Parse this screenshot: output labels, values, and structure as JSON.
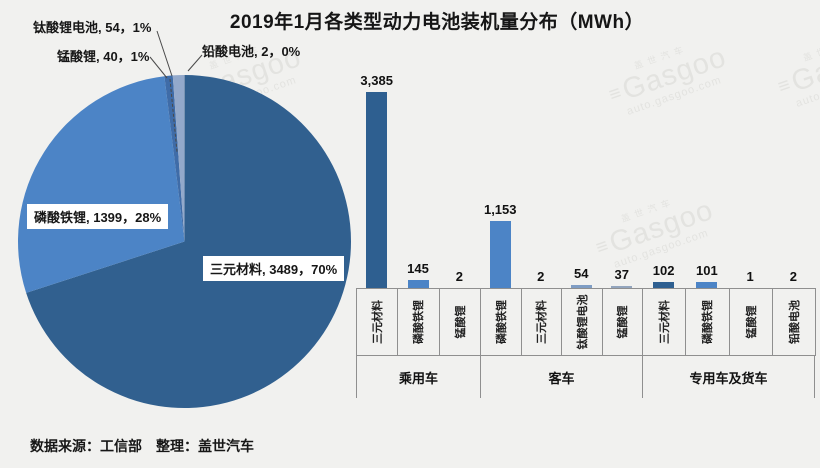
{
  "title": "2019年1月各类型动力电池装机量分布（MWh）",
  "source_line": "数据来源：工信部　整理：盖世汽车",
  "watermark": {
    "mark": "≡",
    "cn": "盖世汽车",
    "brand": "Gasgoo",
    "site": "auto.gasgoo.com"
  },
  "colors": {
    "background": "#f1f1ef",
    "type_colors": {
      "三元材料": "#2e5f90",
      "磷酸铁锂": "#4c84c6",
      "钛酸锂电池": "#7f9dc4",
      "锰酸锂": "#93a5bd",
      "铅酸电池": "#b9c3d6"
    }
  },
  "chart_data": [
    {
      "type": "pie",
      "title": "2019年1月各类型动力电池装机量分布（MWh）",
      "unit": "MWh",
      "legend_position": "none",
      "slices": [
        {
          "name": "三元材料",
          "value": 3489,
          "pct": "70%",
          "label": "三元材料, 3489，70%",
          "color": "#31608f"
        },
        {
          "name": "磷酸铁锂",
          "value": 1399,
          "pct": "28%",
          "label": "磷酸铁锂, 1399，28%",
          "color": "#4c84c6"
        },
        {
          "name": "锰酸锂",
          "value": 40,
          "pct": "1%",
          "label": "锰酸锂, 40，1%",
          "color": "#3f6ca8"
        },
        {
          "name": "钛酸锂电池",
          "value": 54,
          "pct": "1%",
          "label": "钛酸锂电池, 54，1%",
          "color": "#93a9cb"
        },
        {
          "name": "铅酸电池",
          "value": 2,
          "pct": "0%",
          "label": "铅酸电池, 2，0%",
          "color": "#b9c3d6"
        }
      ]
    },
    {
      "type": "bar",
      "ylim": [
        0,
        3500
      ],
      "grid": false,
      "groups": [
        {
          "label": "乘用车",
          "bars": [
            {
              "category": "三元材料",
              "value": 3385,
              "display": "3,385"
            },
            {
              "category": "磷酸铁锂",
              "value": 145,
              "display": "145"
            },
            {
              "category": "锰酸锂",
              "value": 2,
              "display": "2"
            }
          ]
        },
        {
          "label": "客车",
          "bars": [
            {
              "category": "磷酸铁锂",
              "value": 1153,
              "display": "1,153"
            },
            {
              "category": "三元材料",
              "value": 2,
              "display": "2"
            },
            {
              "category": "钛酸锂电池",
              "value": 54,
              "display": "54"
            },
            {
              "category": "锰酸锂",
              "value": 37,
              "display": "37"
            }
          ]
        },
        {
          "label": "专用车及货车",
          "bars": [
            {
              "category": "三元材料",
              "value": 102,
              "display": "102"
            },
            {
              "category": "磷酸铁锂",
              "value": 101,
              "display": "101"
            },
            {
              "category": "锰酸锂",
              "value": 1,
              "display": "1"
            },
            {
              "category": "铅酸电池",
              "value": 2,
              "display": "2"
            }
          ]
        }
      ]
    }
  ]
}
